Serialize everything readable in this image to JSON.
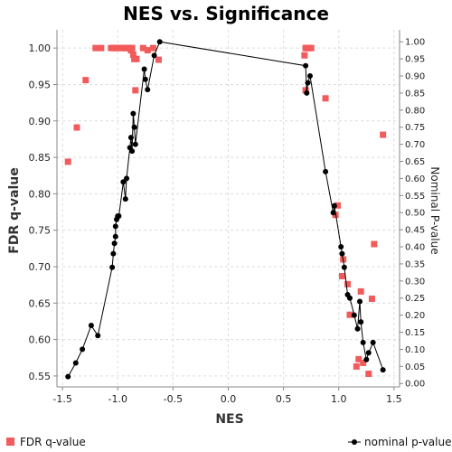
{
  "chart_data": {
    "type": "scatter",
    "title": "NES vs. Significance",
    "xlabel": "NES",
    "ylabel": "FDR q-value",
    "y2label": "Nominal P-value",
    "xlim": [
      -1.55,
      1.55
    ],
    "ylim": [
      0.535,
      1.025
    ],
    "y2lim": [
      -0.01,
      1.035
    ],
    "x_ticks": [
      "-1.5",
      "-1.0",
      "-0.5",
      "0.0",
      "0.5",
      "1.0",
      "1.5"
    ],
    "x_tick_values": [
      -1.5,
      -1.0,
      -0.5,
      0.0,
      0.5,
      1.0,
      1.5
    ],
    "y_ticks": [
      "0.55",
      "0.60",
      "0.65",
      "0.70",
      "0.75",
      "0.80",
      "0.85",
      "0.90",
      "0.95",
      "1.00"
    ],
    "y_tick_values": [
      0.55,
      0.6,
      0.65,
      0.7,
      0.75,
      0.8,
      0.85,
      0.9,
      0.95,
      1.0
    ],
    "y2_ticks": [
      "0.00",
      "0.05",
      "0.10",
      "0.15",
      "0.20",
      "0.25",
      "0.30",
      "0.35",
      "0.40",
      "0.45",
      "0.50",
      "0.55",
      "0.60",
      "0.65",
      "0.70",
      "0.75",
      "0.80",
      "0.85",
      "0.90",
      "0.95",
      "1.00"
    ],
    "y2_tick_values": [
      0.0,
      0.05,
      0.1,
      0.15,
      0.2,
      0.25,
      0.3,
      0.35,
      0.4,
      0.45,
      0.5,
      0.55,
      0.6,
      0.65,
      0.7,
      0.75,
      0.8,
      0.85,
      0.9,
      0.95,
      1.0
    ],
    "grid": true,
    "legend_position": "bottom",
    "series": [
      {
        "name": "FDR q-value",
        "axis": "left",
        "marker": "square",
        "color": "#f25b5b",
        "points": [
          [
            -1.45,
            0.844
          ],
          [
            -1.37,
            0.891
          ],
          [
            -1.29,
            0.956
          ],
          [
            -1.2,
            1.0
          ],
          [
            -1.15,
            1.0
          ],
          [
            -1.06,
            1.0
          ],
          [
            -1.04,
            1.0
          ],
          [
            -1.02,
            1.0
          ],
          [
            -1.0,
            1.0
          ],
          [
            -0.97,
            1.0
          ],
          [
            -0.95,
            1.0
          ],
          [
            -0.93,
            1.0
          ],
          [
            -0.91,
            1.0
          ],
          [
            -0.89,
            1.0
          ],
          [
            -0.88,
            0.997
          ],
          [
            -0.87,
            1.0
          ],
          [
            -0.86,
            0.991
          ],
          [
            -0.85,
            0.985
          ],
          [
            -0.83,
            0.985
          ],
          [
            -0.84,
            0.942
          ],
          [
            -0.77,
            1.0
          ],
          [
            -0.73,
            0.997
          ],
          [
            -0.68,
            1.0
          ],
          [
            -0.63,
            0.984
          ],
          [
            0.69,
            0.99
          ],
          [
            0.7,
            1.0
          ],
          [
            0.71,
            1.0
          ],
          [
            0.72,
            1.0
          ],
          [
            0.73,
            1.0
          ],
          [
            0.75,
            1.0
          ],
          [
            0.7,
            0.942
          ],
          [
            0.88,
            0.931
          ],
          [
            0.97,
            0.771
          ],
          [
            0.99,
            0.784
          ],
          [
            1.03,
            0.687
          ],
          [
            1.04,
            0.71
          ],
          [
            1.08,
            0.676
          ],
          [
            1.1,
            0.634
          ],
          [
            1.16,
            0.563
          ],
          [
            1.18,
            0.573
          ],
          [
            1.2,
            0.666
          ],
          [
            1.22,
            0.568
          ],
          [
            1.27,
            0.553
          ],
          [
            1.3,
            0.656
          ],
          [
            1.32,
            0.731
          ],
          [
            1.4,
            0.881
          ]
        ]
      },
      {
        "name": "nominal p-value",
        "axis": "right",
        "marker": "circle",
        "color": "#000000",
        "points": [
          [
            -1.45,
            0.02
          ],
          [
            -1.38,
            0.06
          ],
          [
            -1.32,
            0.1
          ],
          [
            -1.24,
            0.17
          ],
          [
            -1.18,
            0.14
          ],
          [
            -1.05,
            0.34
          ],
          [
            -1.04,
            0.38
          ],
          [
            -1.03,
            0.41
          ],
          [
            -1.02,
            0.43
          ],
          [
            -1.02,
            0.46
          ],
          [
            -1.01,
            0.48
          ],
          [
            -1.0,
            0.49
          ],
          [
            -0.99,
            0.49
          ],
          [
            -0.95,
            0.59
          ],
          [
            -0.93,
            0.54
          ],
          [
            -0.92,
            0.6
          ],
          [
            -0.88,
            0.72
          ],
          [
            -0.89,
            0.69
          ],
          [
            -0.87,
            0.68
          ],
          [
            -0.86,
            0.79
          ],
          [
            -0.85,
            0.75
          ],
          [
            -0.84,
            0.7
          ],
          [
            -0.76,
            0.92
          ],
          [
            -0.75,
            0.89
          ],
          [
            -0.73,
            0.86
          ],
          [
            -0.67,
            0.96
          ],
          [
            -0.62,
            1.0
          ],
          [
            0.7,
            0.93
          ],
          [
            0.71,
            0.85
          ],
          [
            0.72,
            0.88
          ],
          [
            0.74,
            0.9
          ],
          [
            0.88,
            0.62
          ],
          [
            0.95,
            0.5
          ],
          [
            0.96,
            0.52
          ],
          [
            1.02,
            0.4
          ],
          [
            1.03,
            0.38
          ],
          [
            1.05,
            0.34
          ],
          [
            1.08,
            0.26
          ],
          [
            1.1,
            0.25
          ],
          [
            1.14,
            0.2
          ],
          [
            1.17,
            0.16
          ],
          [
            1.19,
            0.24
          ],
          [
            1.2,
            0.18
          ],
          [
            1.22,
            0.12
          ],
          [
            1.25,
            0.07
          ],
          [
            1.27,
            0.09
          ],
          [
            1.31,
            0.12
          ],
          [
            1.4,
            0.04
          ]
        ]
      }
    ]
  }
}
